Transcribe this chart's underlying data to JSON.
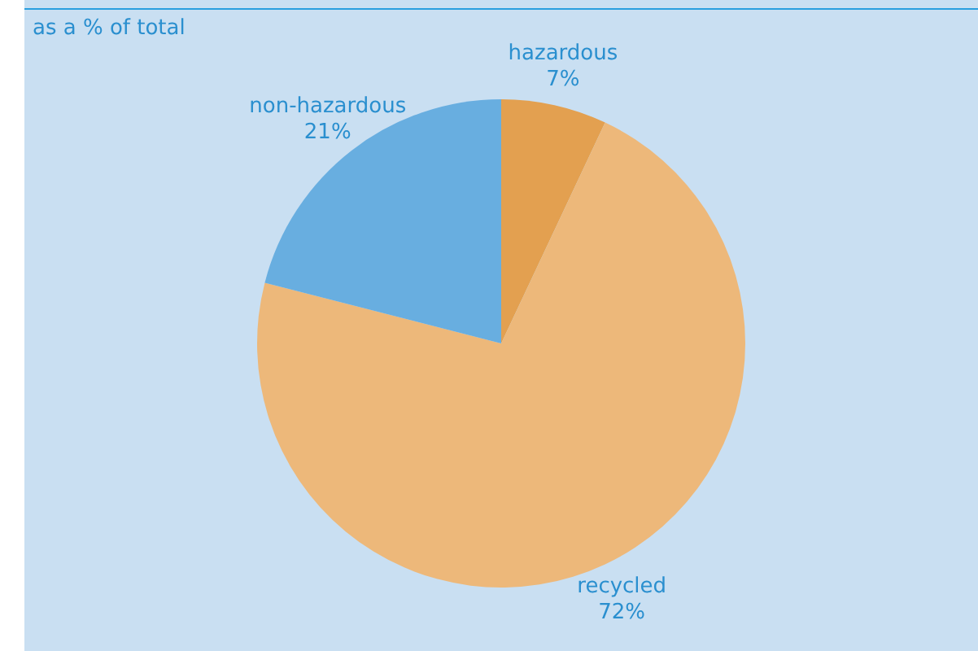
{
  "chart_data": {
    "type": "pie",
    "title": "as a % of total",
    "categories": [
      "hazardous",
      "recycled",
      "non-hazardous"
    ],
    "values": [
      7,
      72,
      21
    ],
    "colors": [
      "#e3a050",
      "#edb87a",
      "#68aee0"
    ],
    "value_labels": [
      "7%",
      "72%",
      "21%"
    ],
    "legend": false
  }
}
